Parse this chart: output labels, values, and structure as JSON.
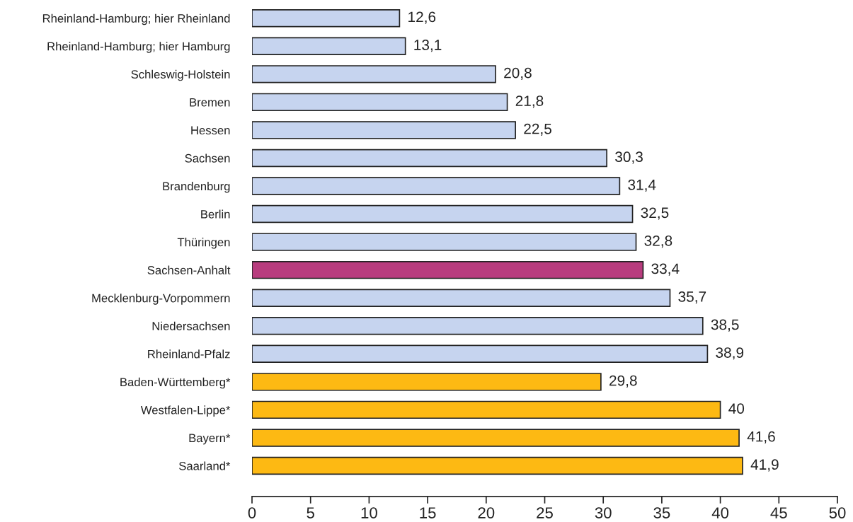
{
  "chart_data": {
    "type": "bar",
    "orientation": "horizontal",
    "categories": [
      "Rheinland-Hamburg; hier Rheinland",
      "Rheinland-Hamburg; hier Hamburg",
      "Schleswig-Holstein",
      "Bremen",
      "Hessen",
      "Sachsen",
      "Brandenburg",
      "Berlin",
      "Thüringen",
      "Sachsen-Anhalt",
      "Mecklenburg-Vorpommern",
      "Niedersachsen",
      "Rheinland-Pfalz",
      "Baden-Württemberg*",
      "Westfalen-Lippe*",
      "Bayern*",
      "Saarland*"
    ],
    "values": [
      12.6,
      13.1,
      20.8,
      21.8,
      22.5,
      30.3,
      31.4,
      32.5,
      32.8,
      33.4,
      35.7,
      38.5,
      38.9,
      29.8,
      40,
      41.6,
      41.9
    ],
    "value_labels": [
      "12,6",
      "13,1",
      "20,8",
      "21,8",
      "22,5",
      "30,3",
      "31,4",
      "32,5",
      "32,8",
      "33,4",
      "35,7",
      "38,5",
      "38,9",
      "29,8",
      "40",
      "41,6",
      "41,9"
    ],
    "colors": [
      "#c6d4ef",
      "#c6d4ef",
      "#c6d4ef",
      "#c6d4ef",
      "#c6d4ef",
      "#c6d4ef",
      "#c6d4ef",
      "#c6d4ef",
      "#c6d4ef",
      "#b83c7e",
      "#c6d4ef",
      "#c6d4ef",
      "#c6d4ef",
      "#fdb913",
      "#fdb913",
      "#fdb913",
      "#fdb913"
    ],
    "xlim": [
      0,
      50
    ],
    "xticks": [
      0,
      5,
      10,
      15,
      20,
      25,
      30,
      35,
      40,
      45,
      50
    ],
    "grid": false,
    "legend": false
  }
}
